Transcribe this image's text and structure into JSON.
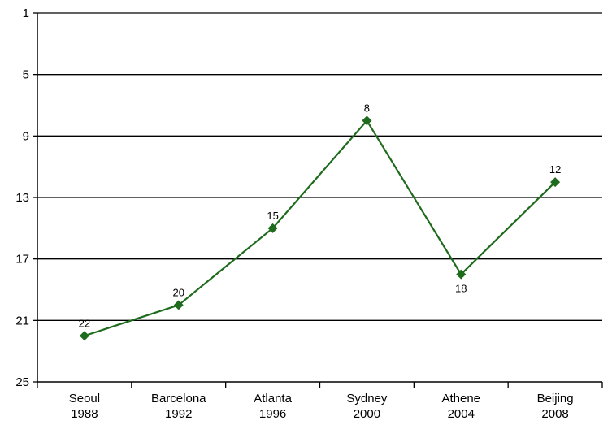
{
  "chart_data": {
    "type": "line",
    "title": "",
    "xlabel": "",
    "ylabel": "",
    "y_reversed": true,
    "ylim": [
      1,
      25
    ],
    "y_ticks": [
      1,
      5,
      9,
      13,
      17,
      21,
      25
    ],
    "grid": "horizontal",
    "legend": "none",
    "categories": [
      [
        "Seoul",
        "1988"
      ],
      [
        "Barcelona",
        "1992"
      ],
      [
        "Atlanta",
        "1996"
      ],
      [
        "Sydney",
        "2000"
      ],
      [
        "Athene",
        "2004"
      ],
      [
        "Beijing",
        "2008"
      ]
    ],
    "series": [
      {
        "values": [
          22,
          20,
          15,
          8,
          18,
          12
        ],
        "color": "#1e6b1e",
        "marker": "diamond",
        "label_positions": [
          "above",
          "above",
          "above",
          "above",
          "below",
          "above"
        ]
      }
    ]
  }
}
